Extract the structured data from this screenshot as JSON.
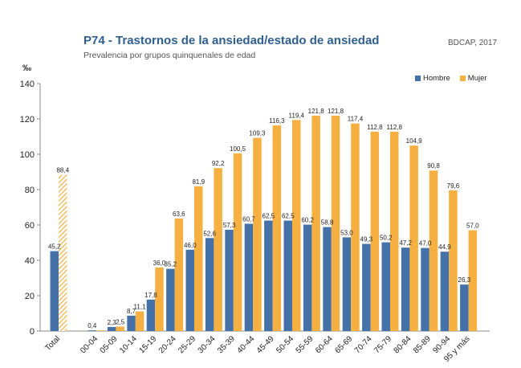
{
  "header": {
    "title": "P74 - Trastornos de la ansiedad/estado de ansiedad",
    "subtitle": "Prevalencia por grupos quinquenales de edad",
    "source": "BDCAP, 2017"
  },
  "colors": {
    "hombre": "#4472a8",
    "mujer": "#f5b041",
    "axis": "#888888",
    "text": "#222222"
  },
  "chart_data": {
    "type": "bar",
    "title": "P74 - Trastornos de la ansiedad/estado de ansiedad",
    "subtitle": "Prevalencia por grupos quinquenales de edad",
    "ylabel": "‰",
    "xlabel": "",
    "ylim": [
      0,
      140
    ],
    "yticks": [
      0,
      20,
      40,
      60,
      80,
      100,
      120,
      140
    ],
    "legend_position": "top-right",
    "grid": false,
    "categories": [
      "Total",
      "00-04",
      "05-09",
      "10-14",
      "15-19",
      "20-24",
      "25-29",
      "30-34",
      "35-39",
      "40-44",
      "45-49",
      "50-54",
      "55-59",
      "60-64",
      "65-69",
      "70-74",
      "75-79",
      "80-84",
      "85-89",
      "90-94",
      "95 y más"
    ],
    "series": [
      {
        "name": "Hombre",
        "values": [
          45.2,
          0.4,
          2.3,
          8.7,
          17.8,
          35.2,
          46.0,
          52.6,
          57.3,
          60.7,
          62.5,
          62.5,
          60.2,
          58.8,
          53.0,
          49.3,
          50.2,
          47.2,
          47.0,
          44.9,
          26.3
        ],
        "labels": [
          "45,2",
          "0,4",
          "2,3",
          "8,7",
          "17,8",
          "35,2",
          "46,0",
          "52,6",
          "57,3",
          "60,7",
          "62,5",
          "62,5",
          "60,2",
          "58,8",
          "53,0",
          "49,3",
          "50,2",
          "47,2",
          "47,0",
          "44,9",
          "26,3"
        ]
      },
      {
        "name": "Mujer",
        "values": [
          88.4,
          0.4,
          2.5,
          11.1,
          36.0,
          63.6,
          81.9,
          92.2,
          100.5,
          109.3,
          116.3,
          119.4,
          121.8,
          121.8,
          117.4,
          112.8,
          112.8,
          104.9,
          90.8,
          79.6,
          57.0
        ],
        "labels": [
          "88,4",
          "",
          "2,5",
          "11,1",
          "36,0",
          "63,6",
          "81,9",
          "92,2",
          "100,5",
          "109,3",
          "116,3",
          "119,4",
          "121,8",
          "121,8",
          "117,4",
          "112,8",
          "112,8",
          "104,9",
          "90,8",
          "79,6",
          "57,0"
        ]
      }
    ]
  }
}
